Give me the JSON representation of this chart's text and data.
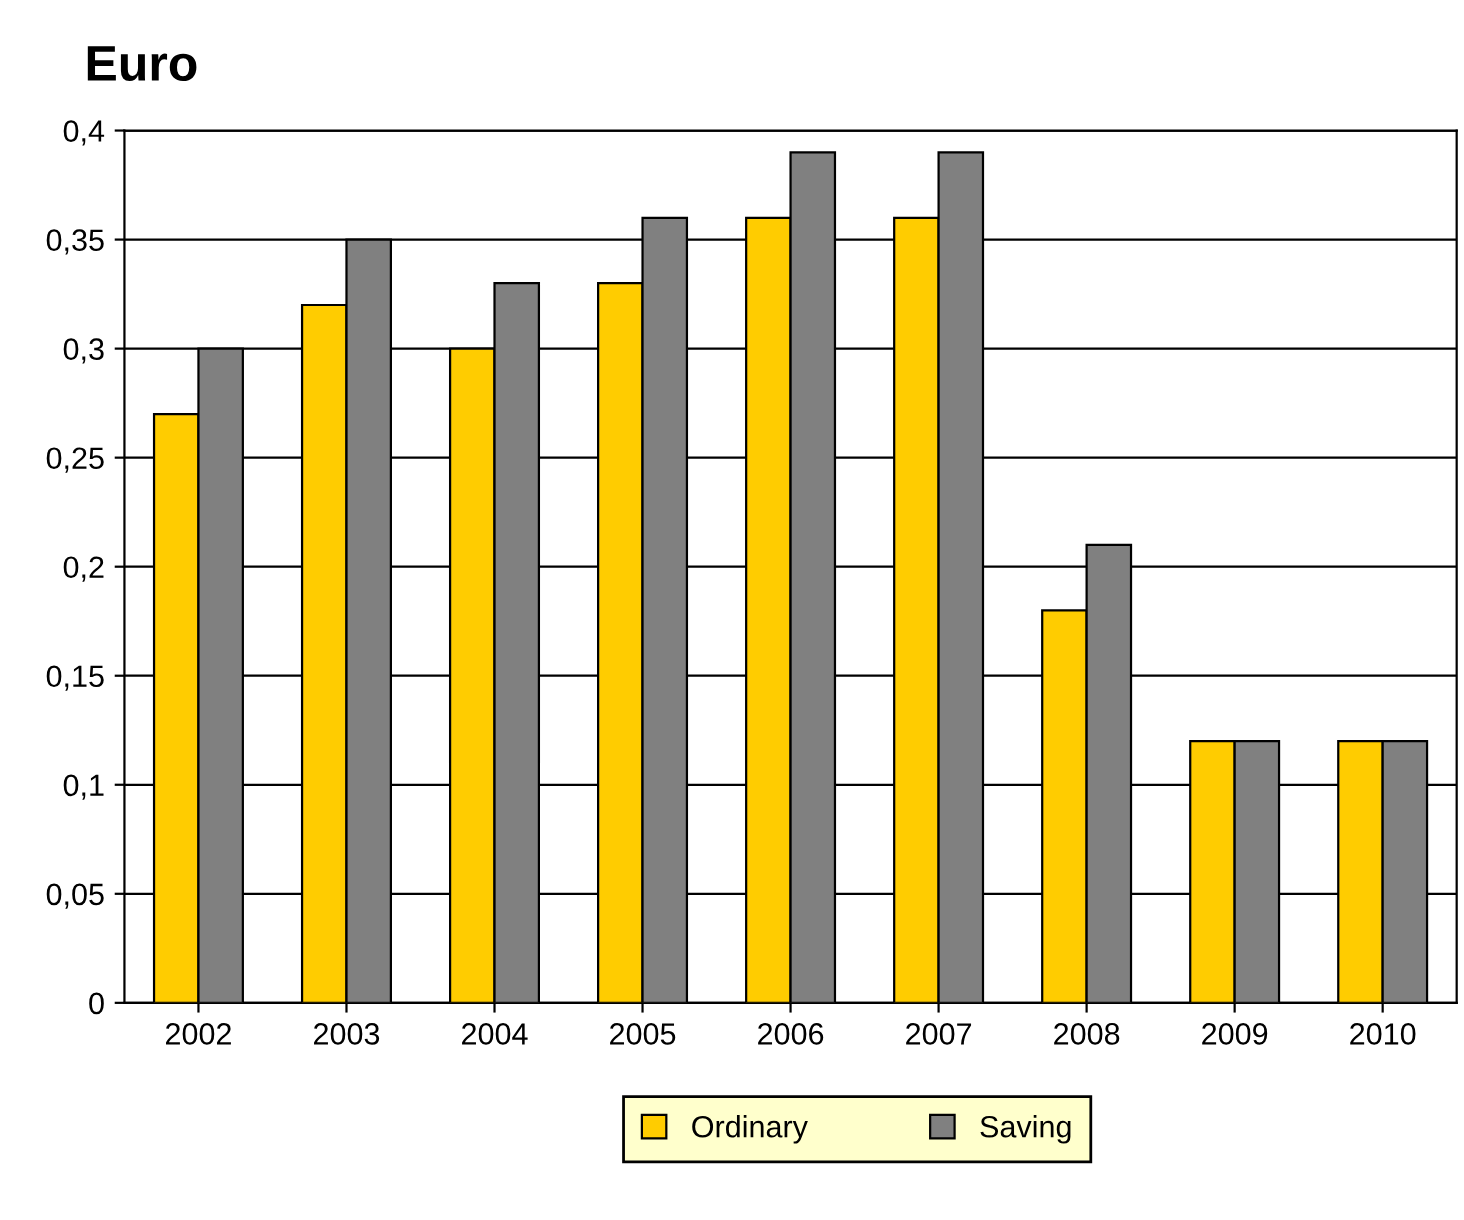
{
  "chart_data": {
    "type": "bar",
    "title": "Euro",
    "categories": [
      "2002",
      "2003",
      "2004",
      "2005",
      "2006",
      "2007",
      "2008",
      "2009",
      "2010"
    ],
    "series": [
      {
        "name": "Ordinary",
        "color": "#ffcc00",
        "values": [
          0.27,
          0.32,
          0.3,
          0.33,
          0.36,
          0.36,
          0.18,
          0.12,
          0.12
        ]
      },
      {
        "name": "Saving",
        "color": "#808080",
        "values": [
          0.3,
          0.35,
          0.33,
          0.36,
          0.39,
          0.39,
          0.21,
          0.12,
          0.12
        ]
      }
    ],
    "ylim": [
      0,
      0.4
    ],
    "yticks": [
      {
        "value": 0,
        "label": "0"
      },
      {
        "value": 0.05,
        "label": "0,05"
      },
      {
        "value": 0.1,
        "label": "0,1"
      },
      {
        "value": 0.15,
        "label": "0,15"
      },
      {
        "value": 0.2,
        "label": "0,2"
      },
      {
        "value": 0.25,
        "label": "0,25"
      },
      {
        "value": 0.3,
        "label": "0,3"
      },
      {
        "value": 0.35,
        "label": "0,35"
      },
      {
        "value": 0.4,
        "label": "0,4"
      }
    ],
    "grid": "y",
    "legend": "bottom"
  }
}
